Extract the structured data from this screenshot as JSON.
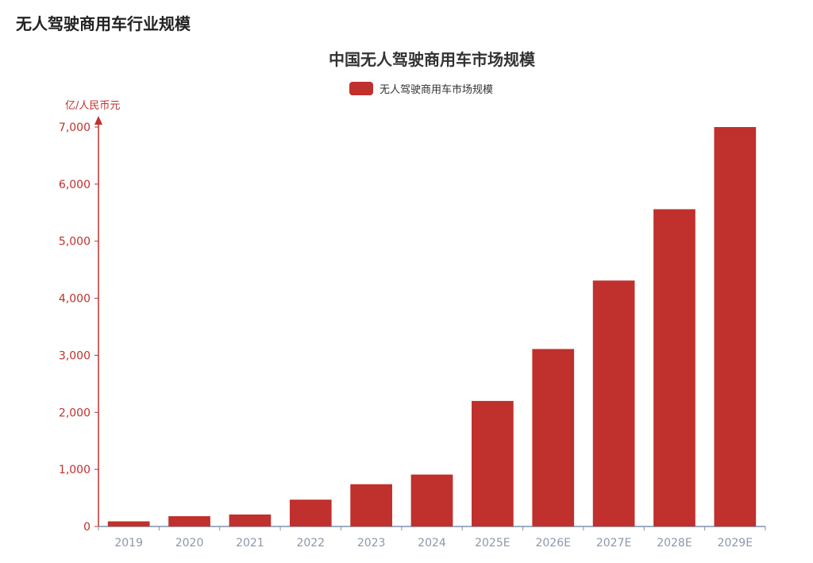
{
  "page": {
    "heading": "无人驾驶商用车行业规模"
  },
  "colors": {
    "bar": "#c0302c",
    "axis_y": "#c0302c",
    "axis_x": "#7f93a8",
    "tick_x": "#8a98aa",
    "title": "#333333"
  },
  "chart_data": {
    "type": "bar",
    "title": "中国无人驾驶商用车市场规模",
    "ylabel": "亿/人民币元",
    "xlabel": "",
    "categories": [
      "2019",
      "2020",
      "2021",
      "2022",
      "2023",
      "2024",
      "2025E",
      "2026E",
      "2027E",
      "2028E",
      "2029E"
    ],
    "series": [
      {
        "name": "无人驾驶商用车市场规模",
        "values": [
          90,
          180,
          210,
          470,
          740,
          910,
          2200,
          3110,
          4310,
          5560,
          7000
        ]
      }
    ],
    "ylim": [
      0,
      7000
    ],
    "yticks": [
      "0",
      "1,000",
      "2,000",
      "3,000",
      "4,000",
      "5,000",
      "6,000",
      "7,000"
    ],
    "grid": false,
    "legend": "top-center"
  }
}
